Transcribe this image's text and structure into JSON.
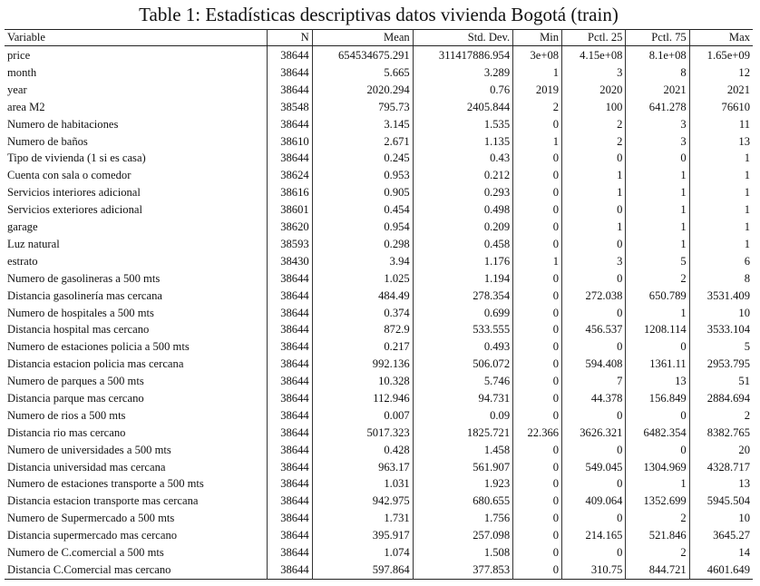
{
  "caption": "Table 1: Estadísticas descriptivas datos vivienda Bogotá (train)",
  "headers": [
    "Variable",
    "N",
    "Mean",
    "Std. Dev.",
    "Min",
    "Pctl. 25",
    "Pctl. 75",
    "Max"
  ],
  "rows": [
    [
      "price",
      "38644",
      "654534675.291",
      "311417886.954",
      "3e+08",
      "4.15e+08",
      "8.1e+08",
      "1.65e+09"
    ],
    [
      "month",
      "38644",
      "5.665",
      "3.289",
      "1",
      "3",
      "8",
      "12"
    ],
    [
      "year",
      "38644",
      "2020.294",
      "0.76",
      "2019",
      "2020",
      "2021",
      "2021"
    ],
    [
      "area M2",
      "38548",
      "795.73",
      "2405.844",
      "2",
      "100",
      "641.278",
      "76610"
    ],
    [
      "Numero de habitaciones",
      "38644",
      "3.145",
      "1.535",
      "0",
      "2",
      "3",
      "11"
    ],
    [
      "Numero de baños",
      "38610",
      "2.671",
      "1.135",
      "1",
      "2",
      "3",
      "13"
    ],
    [
      "Tipo de vivienda (1 si es casa)",
      "38644",
      "0.245",
      "0.43",
      "0",
      "0",
      "0",
      "1"
    ],
    [
      "Cuenta con sala o comedor",
      "38624",
      "0.953",
      "0.212",
      "0",
      "1",
      "1",
      "1"
    ],
    [
      "Servicios interiores adicional",
      "38616",
      "0.905",
      "0.293",
      "0",
      "1",
      "1",
      "1"
    ],
    [
      "Servicios exteriores adicional",
      "38601",
      "0.454",
      "0.498",
      "0",
      "0",
      "1",
      "1"
    ],
    [
      "garage",
      "38620",
      "0.954",
      "0.209",
      "0",
      "1",
      "1",
      "1"
    ],
    [
      "Luz natural",
      "38593",
      "0.298",
      "0.458",
      "0",
      "0",
      "1",
      "1"
    ],
    [
      "estrato",
      "38430",
      "3.94",
      "1.176",
      "1",
      "3",
      "5",
      "6"
    ],
    [
      "Numero de gasolineras a 500 mts",
      "38644",
      "1.025",
      "1.194",
      "0",
      "0",
      "2",
      "8"
    ],
    [
      "Distancia gasolinería mas cercana",
      "38644",
      "484.49",
      "278.354",
      "0",
      "272.038",
      "650.789",
      "3531.409"
    ],
    [
      "Numero de hospitales a 500 mts",
      "38644",
      "0.374",
      "0.699",
      "0",
      "0",
      "1",
      "10"
    ],
    [
      "Distancia hospital mas cercano",
      "38644",
      "872.9",
      "533.555",
      "0",
      "456.537",
      "1208.114",
      "3533.104"
    ],
    [
      "Numero de estaciones policia a 500 mts",
      "38644",
      "0.217",
      "0.493",
      "0",
      "0",
      "0",
      "5"
    ],
    [
      "Distancia estacion policia mas cercana",
      "38644",
      "992.136",
      "506.072",
      "0",
      "594.408",
      "1361.11",
      "2953.795"
    ],
    [
      "Numero de parques a 500 mts",
      "38644",
      "10.328",
      "5.746",
      "0",
      "7",
      "13",
      "51"
    ],
    [
      "Distancia parque mas cercano",
      "38644",
      "112.946",
      "94.731",
      "0",
      "44.378",
      "156.849",
      "2884.694"
    ],
    [
      "Numero de rios a 500 mts",
      "38644",
      "0.007",
      "0.09",
      "0",
      "0",
      "0",
      "2"
    ],
    [
      "Distancia rio mas cercano",
      "38644",
      "5017.323",
      "1825.721",
      "22.366",
      "3626.321",
      "6482.354",
      "8382.765"
    ],
    [
      "Numero de universidades a 500 mts",
      "38644",
      "0.428",
      "1.458",
      "0",
      "0",
      "0",
      "20"
    ],
    [
      "Distancia universidad mas cercana",
      "38644",
      "963.17",
      "561.907",
      "0",
      "549.045",
      "1304.969",
      "4328.717"
    ],
    [
      "Numero de estaciones transporte a 500 mts",
      "38644",
      "1.031",
      "1.923",
      "0",
      "0",
      "1",
      "13"
    ],
    [
      "Distancia estacion transporte mas cercana",
      "38644",
      "942.975",
      "680.655",
      "0",
      "409.064",
      "1352.699",
      "5945.504"
    ],
    [
      "Numero de Supermercado a 500 mts",
      "38644",
      "1.731",
      "1.756",
      "0",
      "0",
      "2",
      "10"
    ],
    [
      "Distancia supermercado mas cercano",
      "38644",
      "395.917",
      "257.098",
      "0",
      "214.165",
      "521.846",
      "3645.27"
    ],
    [
      "Numero de C.comercial a 500 mts",
      "38644",
      "1.074",
      "1.508",
      "0",
      "0",
      "2",
      "14"
    ],
    [
      "Distancia C.Comercial mas cercano",
      "38644",
      "597.864",
      "377.853",
      "0",
      "310.75",
      "844.721",
      "4601.649"
    ]
  ]
}
